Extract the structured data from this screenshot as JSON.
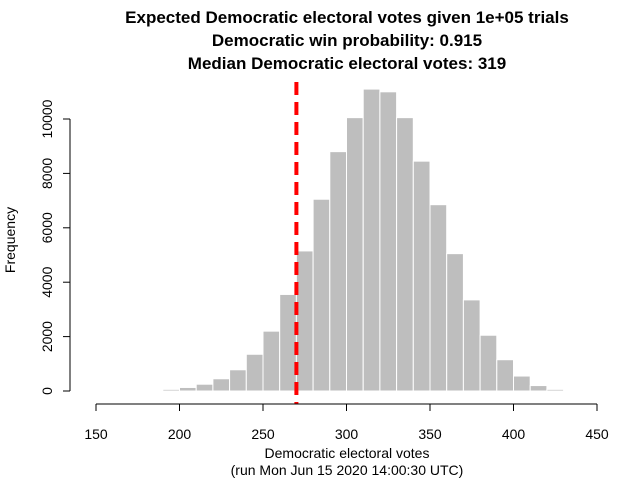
{
  "chart_data": {
    "type": "bar",
    "title_lines": [
      "Expected Democratic electoral votes given 1e+05 trials",
      "Democratic win probability: 0.915",
      "Median Democratic electoral votes: 319"
    ],
    "xlabel": "Democratic electoral votes",
    "sublabel": "(run Mon Jun 15 2020 14:00:30 UTC)",
    "ylabel": "Frequency",
    "xlim": [
      150,
      450
    ],
    "ylim": [
      0,
      10500
    ],
    "xticks": [
      150,
      200,
      250,
      300,
      350,
      400,
      450
    ],
    "yticks": [
      0,
      2000,
      4000,
      6000,
      8000,
      10000
    ],
    "bin_width": 10,
    "bins": [
      {
        "x0": 190,
        "x1": 200,
        "value": 60
      },
      {
        "x0": 200,
        "x1": 210,
        "value": 130
      },
      {
        "x0": 210,
        "x1": 220,
        "value": 250
      },
      {
        "x0": 220,
        "x1": 230,
        "value": 450
      },
      {
        "x0": 230,
        "x1": 240,
        "value": 780
      },
      {
        "x0": 240,
        "x1": 250,
        "value": 1350
      },
      {
        "x0": 250,
        "x1": 260,
        "value": 2200
      },
      {
        "x0": 260,
        "x1": 270,
        "value": 3550
      },
      {
        "x0": 270,
        "x1": 280,
        "value": 5150
      },
      {
        "x0": 280,
        "x1": 290,
        "value": 7050
      },
      {
        "x0": 290,
        "x1": 300,
        "value": 8800
      },
      {
        "x0": 300,
        "x1": 310,
        "value": 10050
      },
      {
        "x0": 310,
        "x1": 320,
        "value": 11100
      },
      {
        "x0": 320,
        "x1": 330,
        "value": 11000
      },
      {
        "x0": 330,
        "x1": 340,
        "value": 10050
      },
      {
        "x0": 340,
        "x1": 350,
        "value": 8450
      },
      {
        "x0": 350,
        "x1": 360,
        "value": 6850
      },
      {
        "x0": 360,
        "x1": 370,
        "value": 5050
      },
      {
        "x0": 370,
        "x1": 380,
        "value": 3350
      },
      {
        "x0": 380,
        "x1": 390,
        "value": 2050
      },
      {
        "x0": 390,
        "x1": 400,
        "value": 1150
      },
      {
        "x0": 400,
        "x1": 410,
        "value": 550
      },
      {
        "x0": 410,
        "x1": 420,
        "value": 200
      },
      {
        "x0": 420,
        "x1": 430,
        "value": 60
      }
    ],
    "threshold_line": {
      "x": 270,
      "color": "#ff0000",
      "style": "dashed"
    },
    "bar_color": "#bebebe",
    "bar_edge_color": "#ffffff",
    "grid": false,
    "legend": "none"
  }
}
